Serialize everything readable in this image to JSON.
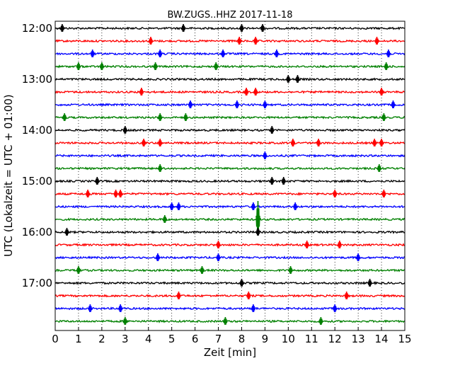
{
  "chart_data": {
    "type": "line",
    "title": "BW.ZUGS..HHZ 2017-11-18",
    "xlabel": "Zeit  [min]",
    "ylabel": "UTC (Lokalzeit = UTC + 01:00)",
    "xlim": [
      0,
      15
    ],
    "x_ticks": [
      "0",
      "1",
      "2",
      "3",
      "4",
      "5",
      "6",
      "7",
      "8",
      "9",
      "10",
      "11",
      "12",
      "13",
      "14",
      "15"
    ],
    "y_ticks": [
      "12:00",
      "13:00",
      "14:00",
      "15:00",
      "16:00",
      "17:00"
    ],
    "grid": true,
    "trace_interval_minutes": 15,
    "trace_colors": [
      "#000000",
      "#ff0000",
      "#0000ff",
      "#008000"
    ],
    "traces": [
      {
        "start": "12:00",
        "events_min": [
          0.3,
          5.5,
          8.0,
          8.9
        ]
      },
      {
        "start": "12:15",
        "events_min": [
          4.1,
          7.9,
          8.6,
          13.8
        ]
      },
      {
        "start": "12:30",
        "events_min": [
          1.6,
          4.5,
          7.2,
          9.5,
          14.3
        ]
      },
      {
        "start": "12:45",
        "events_min": [
          1.0,
          2.0,
          4.3,
          6.9,
          14.2
        ]
      },
      {
        "start": "13:00",
        "events_min": [
          10.0,
          10.4
        ]
      },
      {
        "start": "13:15",
        "events_min": [
          3.7,
          8.2,
          8.6,
          14.0
        ]
      },
      {
        "start": "13:30",
        "events_min": [
          5.8,
          7.8,
          9.0,
          14.5
        ]
      },
      {
        "start": "13:45",
        "events_min": [
          0.4,
          4.5,
          5.6,
          14.1
        ]
      },
      {
        "start": "14:00",
        "events_min": [
          3.0,
          9.3
        ]
      },
      {
        "start": "14:15",
        "events_min": [
          3.8,
          4.5,
          10.2,
          11.3,
          13.7,
          14.0
        ]
      },
      {
        "start": "14:30",
        "events_min": [
          9.0
        ]
      },
      {
        "start": "14:45",
        "events_min": [
          4.5,
          13.9
        ]
      },
      {
        "start": "15:00",
        "events_min": [
          1.8,
          9.3,
          9.8
        ]
      },
      {
        "start": "15:15",
        "events_min": [
          1.4,
          2.6,
          2.8,
          12.0,
          14.1
        ]
      },
      {
        "start": "15:30",
        "events_min": [
          5.0,
          5.3,
          8.5,
          10.3
        ]
      },
      {
        "start": "15:45",
        "events_min": [
          4.7,
          8.7
        ]
      },
      {
        "start": "16:00",
        "events_min": [
          0.5,
          8.7
        ]
      },
      {
        "start": "16:15",
        "events_min": [
          7.0,
          10.8,
          12.2
        ]
      },
      {
        "start": "16:30",
        "events_min": [
          4.4,
          7.0,
          13.0
        ]
      },
      {
        "start": "16:45",
        "events_min": [
          1.0,
          6.3,
          10.1
        ]
      },
      {
        "start": "17:00",
        "events_min": [
          8.0,
          13.5
        ]
      },
      {
        "start": "17:15",
        "events_min": [
          5.3,
          8.3,
          12.5
        ]
      },
      {
        "start": "17:30",
        "events_min": [
          1.5,
          2.8,
          8.5,
          12.0
        ]
      },
      {
        "start": "17:45",
        "events_min": [
          3.0,
          7.3,
          11.4
        ]
      }
    ]
  }
}
